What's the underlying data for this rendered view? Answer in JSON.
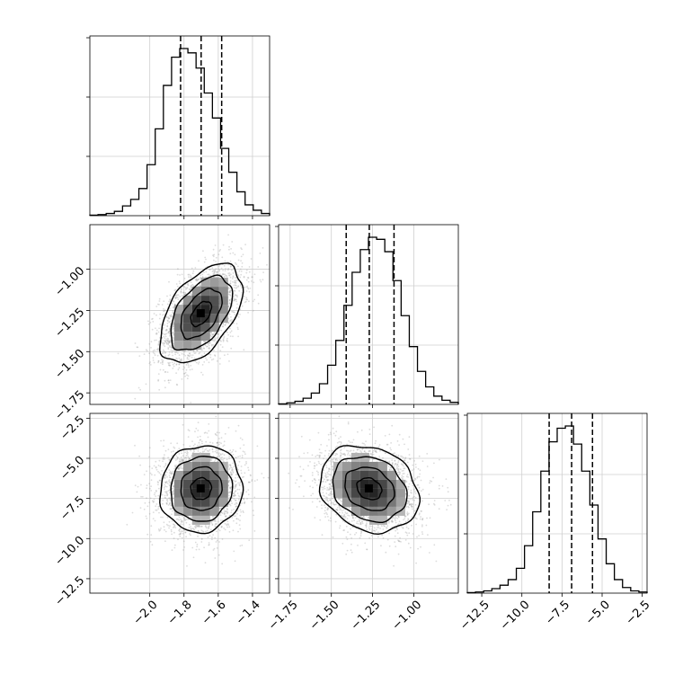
{
  "chart_data": {
    "type": "corner",
    "grid": true,
    "parameters": [
      {
        "range": [
          -2.35,
          -1.3
        ],
        "mean": -1.7,
        "quantiles": [
          -1.82,
          -1.7,
          -1.58
        ],
        "ticks": [
          -2.0,
          -1.8,
          -1.6,
          -1.4
        ],
        "tick_labels": [
          "−2.0",
          "−1.8",
          "−1.6",
          "−1.4"
        ],
        "hist": [
          0.5,
          1,
          2,
          4,
          9,
          15,
          25,
          47,
          80,
          120,
          146,
          154,
          150,
          136,
          113,
          90,
          62,
          40,
          22,
          10,
          5,
          2
        ]
      },
      {
        "range": [
          -1.82,
          -0.73
        ],
        "mean": -1.27,
        "quantiles": [
          -1.41,
          -1.27,
          -1.12
        ],
        "ticks": [
          -1.75,
          -1.5,
          -1.25,
          -1.0
        ],
        "tick_labels": [
          "−1.75",
          "−1.50",
          "−1.25",
          "−1.00"
        ],
        "hist": [
          0.5,
          1.5,
          3,
          6,
          11,
          20,
          38,
          62,
          96,
          128,
          150,
          162,
          160,
          148,
          120,
          86,
          56,
          32,
          17,
          8,
          4,
          2
        ]
      },
      {
        "range": [
          -13.4,
          -2.2
        ],
        "mean": -6.9,
        "quantiles": [
          -8.3,
          -6.9,
          -5.6
        ],
        "ticks": [
          -12.5,
          -10.0,
          -7.5,
          -5.0,
          -2.5
        ],
        "tick_labels": [
          "−12.5",
          "−10.0",
          "−7.5",
          "−5.0",
          "−2.5"
        ],
        "hist": [
          0.5,
          1,
          2,
          4,
          7,
          12,
          22,
          42,
          72,
          108,
          134,
          146,
          148,
          132,
          108,
          78,
          48,
          26,
          12,
          5,
          2,
          1
        ]
      }
    ],
    "correlations": {
      "1,0": 0.5,
      "2,0": 0.05,
      "2,1": -0.2
    },
    "stds": [
      0.12,
      0.15,
      1.35
    ]
  }
}
